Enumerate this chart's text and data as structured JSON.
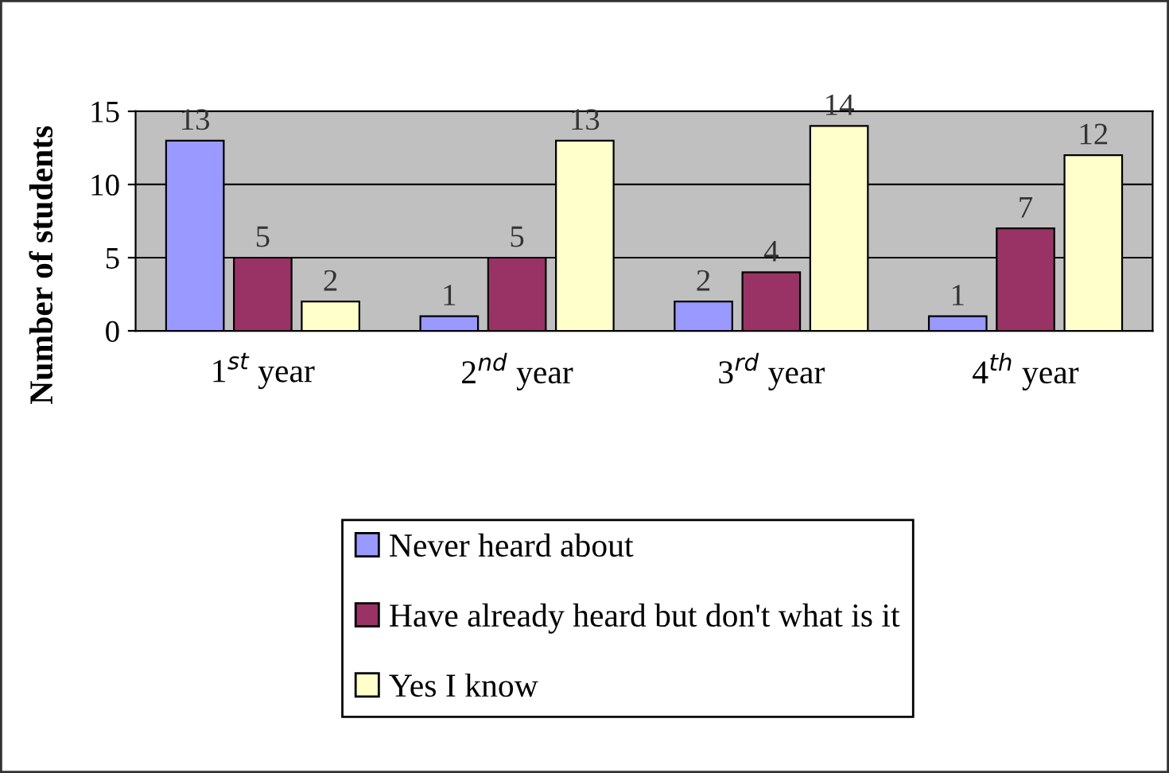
{
  "chart_data": {
    "type": "bar",
    "ylabel": "Number of students",
    "categories": [
      "1$^{st}$ year",
      "2$^{nd}$ year",
      "3$^{rd}$ year",
      "4$^{th}$ year"
    ],
    "series": [
      {
        "name": "Never heard about",
        "color": "#9999ff",
        "values": [
          13,
          1,
          2,
          1
        ]
      },
      {
        "name": "Have already heard but don't what is it",
        "color": "#993366",
        "values": [
          5,
          5,
          4,
          7
        ]
      },
      {
        "name": "Yes I know",
        "color": "#ffffcc",
        "values": [
          2,
          13,
          14,
          12
        ]
      }
    ],
    "ylim": [
      0,
      15
    ],
    "yticks": [
      0,
      5,
      10,
      15
    ],
    "grid": "y",
    "legend": "bottom",
    "data_labels": true
  }
}
